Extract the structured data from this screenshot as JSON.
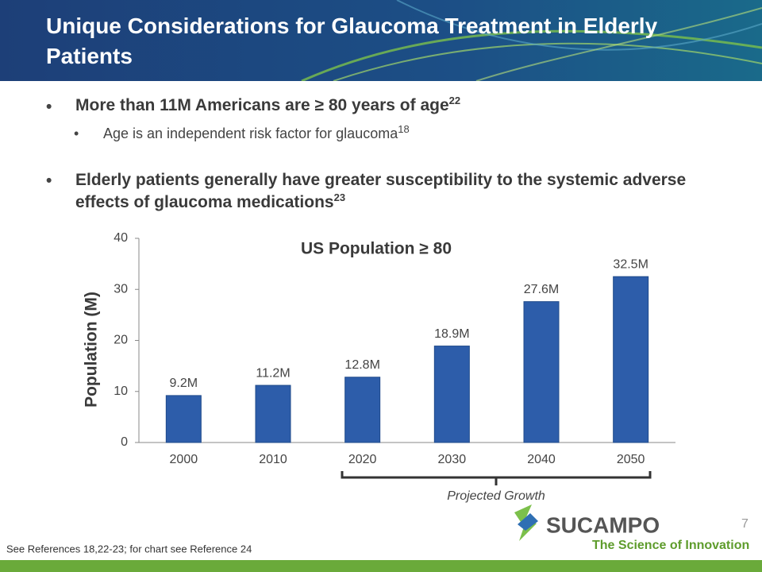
{
  "header": {
    "title": "Unique Considerations for Glaucoma Treatment in Elderly Patients"
  },
  "bullets": [
    {
      "text": "More than 11M Americans are ≥ 80 years of age",
      "ref": "22",
      "sub": [
        {
          "text": "Age is an independent risk factor for glaucoma",
          "ref": "18"
        }
      ]
    },
    {
      "text": "Elderly patients generally have greater susceptibility to the systemic adverse effects of glaucoma medications",
      "ref": "23"
    }
  ],
  "chart_data": {
    "type": "bar",
    "title": "US Population ≥ 80",
    "y_label": "Population (M)",
    "categories": [
      "2000",
      "2010",
      "2020",
      "2030",
      "2040",
      "2050"
    ],
    "values": [
      9.2,
      11.2,
      12.8,
      18.9,
      27.6,
      32.5
    ],
    "value_labels": [
      "9.2M",
      "11.2M",
      "12.8M",
      "18.9M",
      "27.6M",
      "32.5M"
    ],
    "color": "#2d5daa",
    "ylim": [
      0,
      40
    ],
    "yticks": [
      0,
      10,
      20,
      30,
      40
    ],
    "grid": false,
    "annotation": "Projected Growth"
  },
  "footer": {
    "note": "See References 18,22-23; for chart see Reference 24",
    "page": "7"
  },
  "logo": {
    "name": "SUCAMPO",
    "tagline": "The Science of Innovation"
  }
}
